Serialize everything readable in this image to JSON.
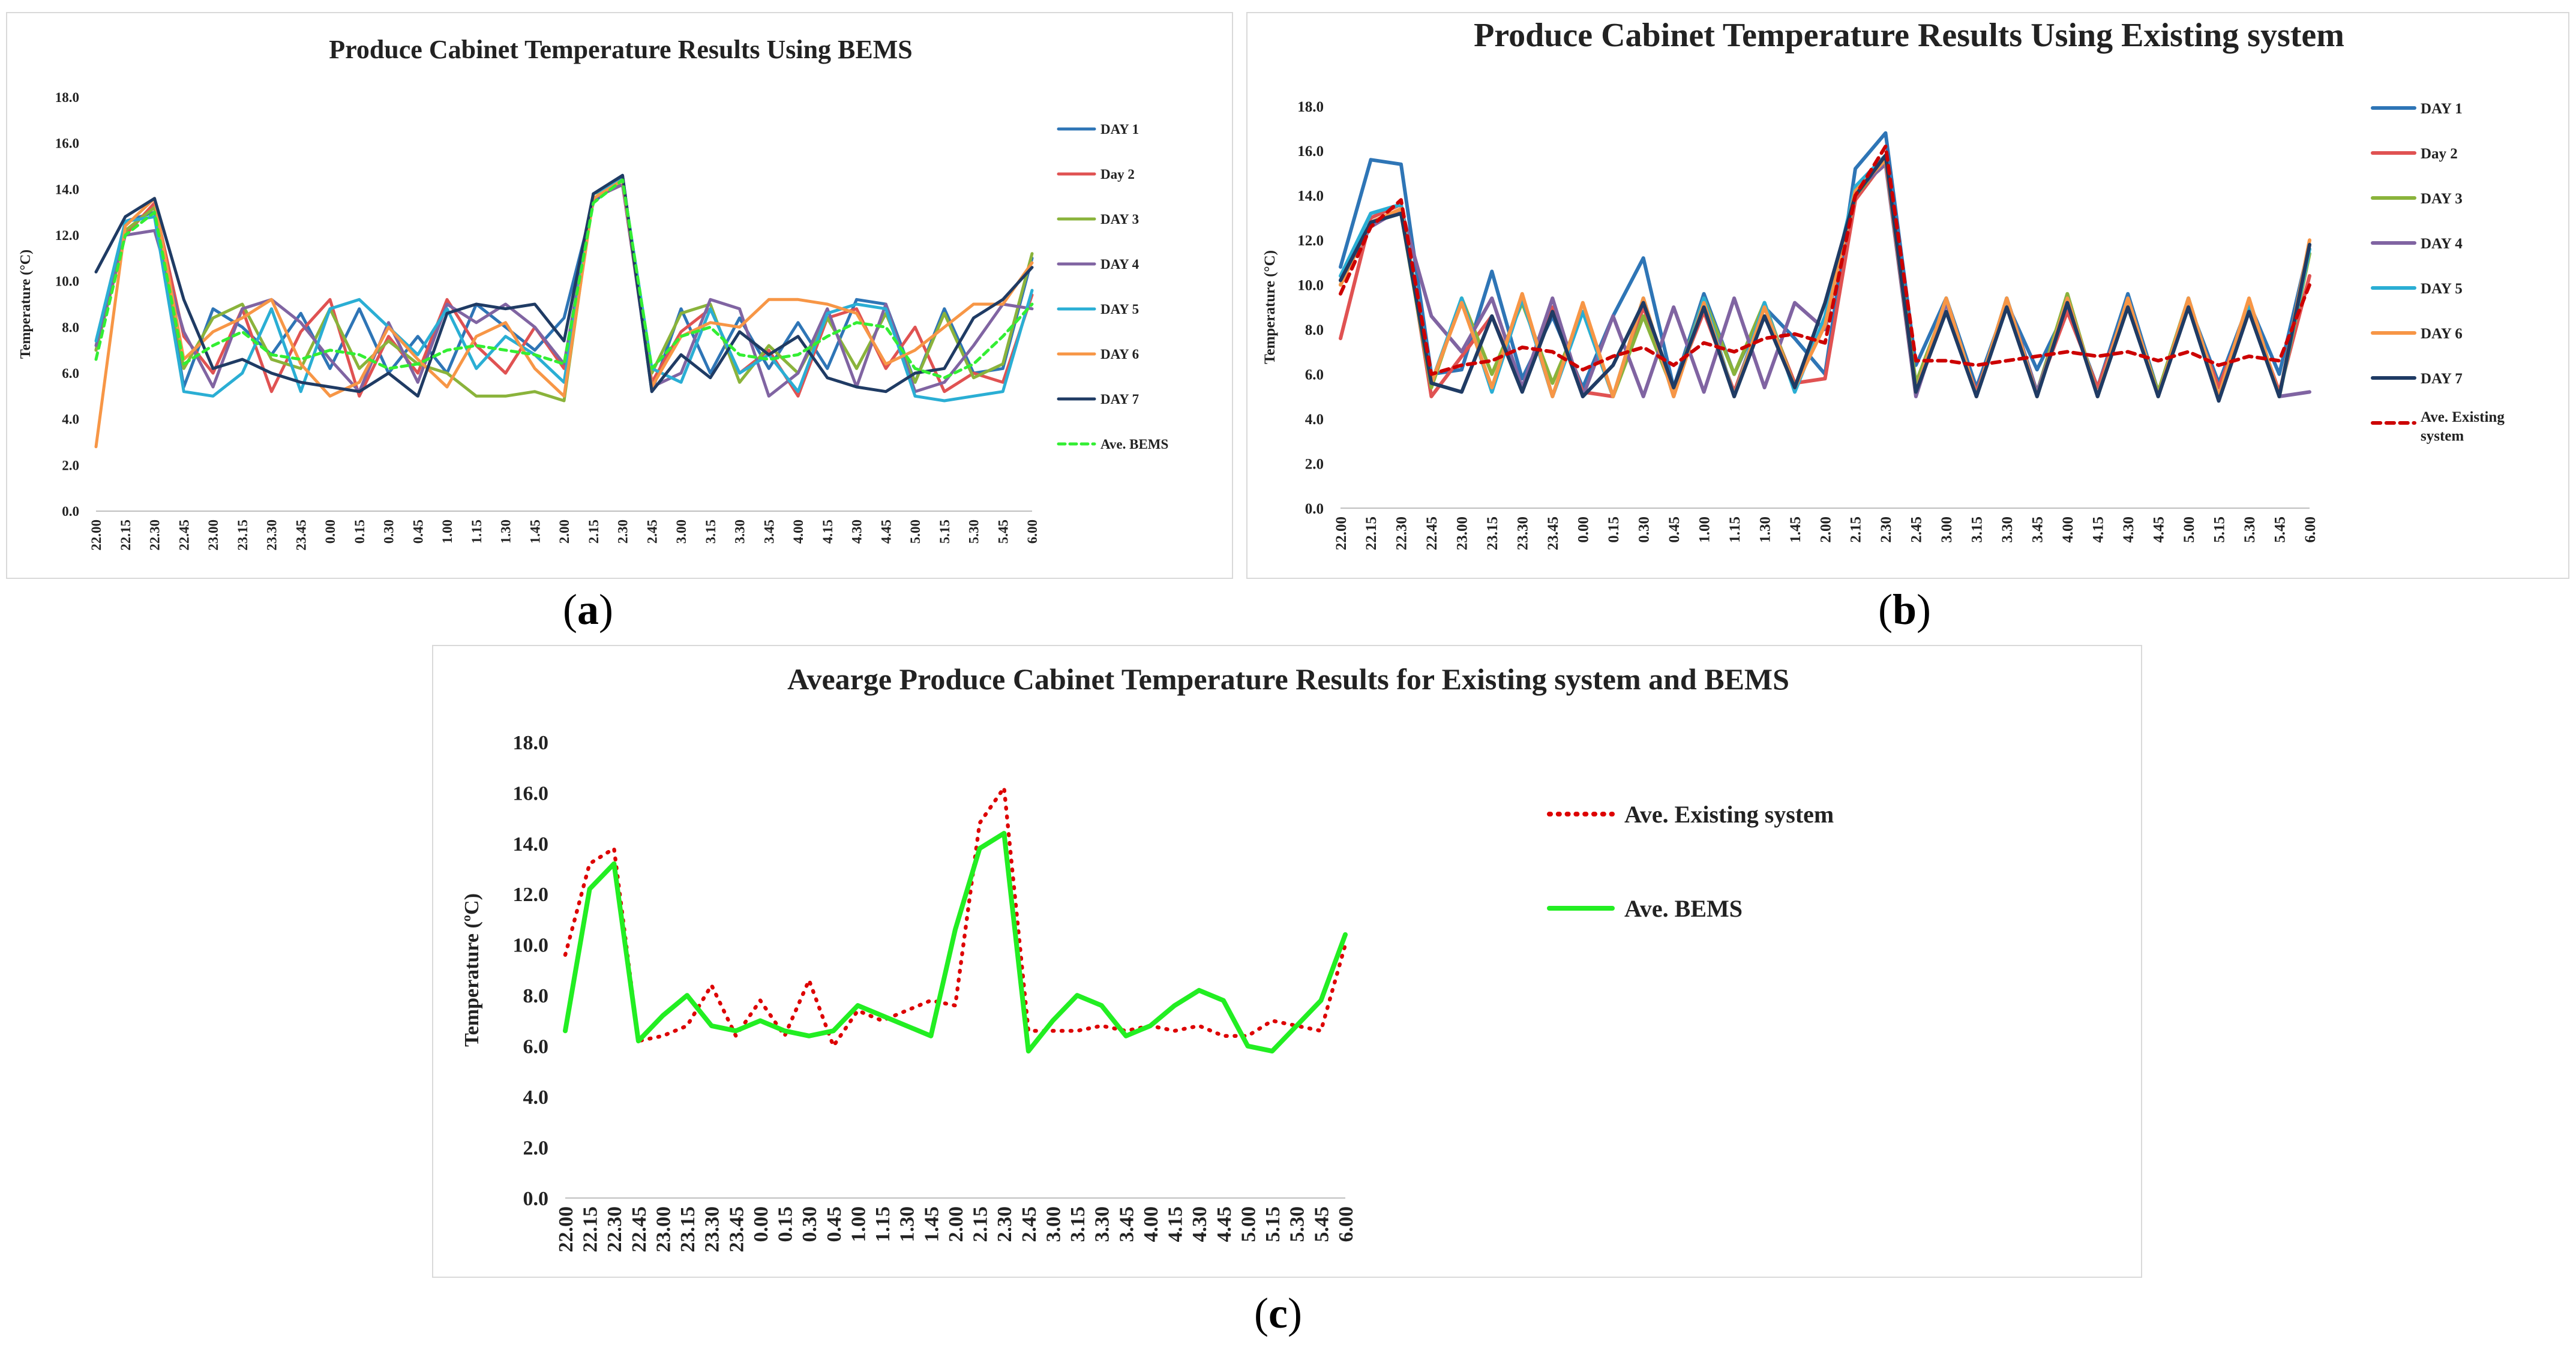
{
  "chart_data": [
    {
      "id": "a",
      "type": "line",
      "title": "Produce Cabinet Temperature Results Using BEMS",
      "xlabel": "",
      "ylabel": "Temperature (°C)",
      "ylim": [
        0,
        18
      ],
      "yticks": [
        "0.0",
        "2.0",
        "4.0",
        "6.0",
        "8.0",
        "10.0",
        "12.0",
        "14.0",
        "16.0",
        "18.0"
      ],
      "categories": [
        "22.00",
        "22.15",
        "22.30",
        "22.45",
        "23.00",
        "23.15",
        "23.30",
        "23.45",
        "0.00",
        "0.15",
        "0.30",
        "0.45",
        "1.00",
        "1.15",
        "1.30",
        "1.45",
        "2.00",
        "2.15",
        "2.30",
        "2.45",
        "3.00",
        "3.15",
        "3.30",
        "3.45",
        "4.00",
        "4.15",
        "4.30",
        "4.45",
        "5.00",
        "5.15",
        "5.30",
        "5.45",
        "6.00"
      ],
      "series": [
        {
          "name": "DAY 1",
          "color": "#2e75b6",
          "dash": "solid",
          "values": [
            7.0,
            12.6,
            13.0,
            5.4,
            8.8,
            8.0,
            6.8,
            8.6,
            6.2,
            8.8,
            6.0,
            7.6,
            6.0,
            9.0,
            8.0,
            7.0,
            8.4,
            13.4,
            14.6,
            5.2,
            8.8,
            6.0,
            8.4,
            6.2,
            8.2,
            6.2,
            9.2,
            9.0,
            5.6,
            8.8,
            6.0,
            6.2,
            11.0
          ]
        },
        {
          "name": "Day 2",
          "color": "#e05252",
          "dash": "solid",
          "values": [
            7.0,
            12.0,
            13.4,
            7.6,
            6.0,
            8.8,
            5.2,
            7.8,
            9.2,
            5.0,
            7.6,
            6.0,
            9.2,
            7.2,
            6.0,
            8.0,
            6.2,
            13.6,
            14.2,
            5.6,
            7.8,
            8.8,
            6.0,
            7.0,
            5.0,
            8.4,
            8.8,
            6.2,
            8.0,
            5.2,
            6.0,
            5.6,
            9.4
          ]
        },
        {
          "name": "DAY 3",
          "color": "#8ab33b",
          "dash": "solid",
          "values": [
            7.0,
            12.2,
            13.2,
            6.2,
            8.4,
            9.0,
            6.6,
            6.2,
            8.8,
            6.2,
            7.4,
            6.4,
            6.0,
            5.0,
            5.0,
            5.2,
            4.8,
            13.8,
            14.2,
            6.0,
            8.6,
            9.0,
            5.6,
            7.2,
            6.0,
            8.4,
            6.2,
            8.6,
            5.6,
            8.6,
            5.8,
            6.4,
            11.2
          ]
        },
        {
          "name": "DAY 4",
          "color": "#8064a2",
          "dash": "solid",
          "values": [
            7.2,
            12.0,
            12.2,
            7.8,
            5.4,
            8.8,
            9.2,
            8.2,
            6.6,
            5.2,
            8.2,
            5.6,
            9.0,
            8.2,
            9.0,
            8.0,
            6.4,
            13.6,
            14.2,
            5.4,
            6.0,
            9.2,
            8.8,
            5.0,
            6.0,
            8.8,
            5.4,
            9.0,
            5.2,
            5.6,
            7.2,
            9.0,
            8.8
          ]
        },
        {
          "name": "DAY 5",
          "color": "#2aaed4",
          "dash": "solid",
          "values": [
            7.4,
            12.6,
            12.8,
            5.2,
            5.0,
            6.0,
            8.8,
            5.2,
            8.8,
            9.2,
            8.0,
            6.8,
            8.8,
            6.2,
            7.6,
            6.8,
            5.6,
            13.8,
            14.4,
            6.2,
            5.6,
            8.8,
            6.0,
            6.8,
            5.2,
            8.6,
            9.0,
            8.8,
            5.0,
            4.8,
            5.0,
            5.2,
            9.6
          ]
        },
        {
          "name": "DAY 6",
          "color": "#f79646",
          "dash": "solid",
          "values": [
            2.8,
            12.4,
            13.6,
            6.6,
            7.8,
            8.4,
            9.2,
            6.4,
            5.0,
            5.6,
            8.0,
            6.6,
            5.4,
            7.6,
            8.2,
            6.2,
            5.0,
            13.6,
            14.4,
            5.4,
            7.6,
            8.2,
            8.0,
            9.2,
            9.2,
            9.0,
            8.6,
            6.4,
            7.0,
            8.0,
            9.0,
            9.0,
            10.8
          ]
        },
        {
          "name": "DAY 7",
          "color": "#1f3b64",
          "dash": "solid",
          "values": [
            10.4,
            12.8,
            13.6,
            9.2,
            6.2,
            6.6,
            6.0,
            5.6,
            5.4,
            5.2,
            6.0,
            5.0,
            8.6,
            9.0,
            8.8,
            9.0,
            7.4,
            13.8,
            14.6,
            5.2,
            6.8,
            5.8,
            7.8,
            6.8,
            7.6,
            5.8,
            5.4,
            5.2,
            6.0,
            6.2,
            8.4,
            9.2,
            10.6
          ]
        },
        {
          "name": "Ave. BEMS",
          "color": "#33ee33",
          "dash": "dashed",
          "values": [
            6.6,
            12.0,
            13.0,
            6.4,
            7.2,
            7.8,
            6.8,
            6.6,
            7.0,
            6.8,
            6.2,
            6.4,
            7.0,
            7.2,
            7.0,
            6.8,
            6.4,
            13.4,
            14.4,
            6.2,
            7.6,
            8.0,
            6.8,
            6.6,
            6.8,
            7.6,
            8.2,
            8.0,
            6.2,
            5.8,
            6.4,
            7.6,
            9.0
          ]
        }
      ],
      "legend_position": "right"
    },
    {
      "id": "b",
      "type": "line",
      "title": "Produce Cabinet Temperature Results Using Existing system",
      "xlabel": "",
      "ylabel": "Temperature (°C)",
      "ylim": [
        0,
        18
      ],
      "yticks": [
        "0.0",
        "2.0",
        "4.0",
        "6.0",
        "8.0",
        "10.0",
        "12.0",
        "14.0",
        "16.0",
        "18.0"
      ],
      "categories": [
        "22.00",
        "22.15",
        "22.30",
        "22.45",
        "23.00",
        "23.15",
        "23.30",
        "23.45",
        "0.00",
        "0.15",
        "0.30",
        "0.45",
        "1.00",
        "1.15",
        "1.30",
        "1.45",
        "2.00",
        "2.15",
        "2.30",
        "2.45",
        "3.00",
        "3.15",
        "3.30",
        "3.45",
        "4.00",
        "4.15",
        "4.30",
        "4.45",
        "5.00",
        "5.15",
        "5.30",
        "5.45",
        "6.00"
      ],
      "series": [
        {
          "name": "DAY 1",
          "color": "#2e75b6",
          "dash": "solid",
          "values": [
            10.8,
            15.6,
            15.4,
            6.0,
            6.2,
            10.6,
            5.8,
            8.6,
            5.4,
            8.6,
            11.2,
            5.4,
            9.6,
            6.0,
            9.0,
            7.6,
            6.0,
            15.2,
            16.8,
            6.4,
            9.4,
            5.4,
            9.2,
            6.2,
            9.0,
            5.4,
            9.6,
            5.2,
            9.2,
            5.6,
            9.2,
            6.0,
            11.8
          ]
        },
        {
          "name": "Day 2",
          "color": "#e05252",
          "dash": "solid",
          "values": [
            7.6,
            13.0,
            13.6,
            5.0,
            6.8,
            8.6,
            5.4,
            9.0,
            5.2,
            5.0,
            9.0,
            5.4,
            8.8,
            5.2,
            9.0,
            5.6,
            5.8,
            13.8,
            15.6,
            5.4,
            8.8,
            5.2,
            9.0,
            5.2,
            8.8,
            5.4,
            9.2,
            5.2,
            9.0,
            5.4,
            9.0,
            5.2,
            10.4
          ]
        },
        {
          "name": "DAY 3",
          "color": "#8ab33b",
          "dash": "solid",
          "values": [
            10.0,
            12.8,
            13.2,
            5.4,
            9.4,
            6.0,
            9.2,
            5.6,
            8.8,
            5.0,
            8.6,
            5.2,
            9.4,
            6.0,
            9.2,
            5.4,
            8.4,
            14.0,
            15.6,
            5.6,
            9.2,
            5.0,
            9.4,
            5.2,
            9.6,
            5.0,
            9.2,
            5.2,
            9.4,
            5.0,
            9.2,
            5.0,
            11.4
          ]
        },
        {
          "name": "DAY 4",
          "color": "#8064a2",
          "dash": "solid",
          "values": [
            10.2,
            12.6,
            13.4,
            8.6,
            7.0,
            9.4,
            5.4,
            9.4,
            5.0,
            8.6,
            5.0,
            9.0,
            5.2,
            9.4,
            5.4,
            9.2,
            8.0,
            14.2,
            15.4,
            5.0,
            9.2,
            5.0,
            9.4,
            5.2,
            9.2,
            5.0,
            9.4,
            5.0,
            9.2,
            5.0,
            9.2,
            5.0,
            5.2
          ]
        },
        {
          "name": "DAY 5",
          "color": "#2aaed4",
          "dash": "solid",
          "values": [
            10.4,
            13.2,
            13.6,
            5.6,
            9.4,
            5.2,
            9.4,
            5.0,
            8.8,
            5.0,
            9.4,
            5.0,
            9.4,
            5.0,
            9.2,
            5.2,
            8.6,
            14.4,
            15.8,
            5.2,
            9.4,
            5.0,
            9.4,
            5.0,
            9.4,
            5.0,
            9.4,
            5.0,
            9.4,
            5.0,
            9.0,
            5.0,
            11.6
          ]
        },
        {
          "name": "DAY 6",
          "color": "#f79646",
          "dash": "solid",
          "values": [
            10.0,
            12.8,
            13.4,
            5.6,
            9.2,
            5.4,
            9.6,
            5.0,
            9.2,
            5.0,
            9.4,
            5.0,
            9.2,
            5.0,
            9.0,
            5.4,
            8.2,
            14.2,
            15.6,
            5.2,
            9.4,
            5.0,
            9.4,
            5.0,
            9.4,
            5.0,
            9.4,
            5.0,
            9.4,
            5.0,
            9.4,
            5.0,
            12.0
          ]
        },
        {
          "name": "DAY 7",
          "color": "#1f3b64",
          "dash": "solid",
          "values": [
            10.2,
            12.8,
            13.2,
            5.6,
            5.2,
            8.6,
            5.2,
            8.8,
            5.0,
            6.4,
            9.2,
            5.4,
            9.0,
            5.0,
            8.6,
            5.4,
            9.2,
            14.0,
            15.8,
            5.2,
            8.8,
            5.0,
            9.0,
            5.0,
            9.2,
            5.0,
            9.0,
            5.0,
            9.0,
            4.8,
            8.8,
            5.0,
            11.8
          ]
        },
        {
          "name": "Ave. Existing system",
          "color": "#cc0000",
          "dash": "dashed",
          "values": [
            9.6,
            12.6,
            13.8,
            6.0,
            6.4,
            6.6,
            7.2,
            7.0,
            6.2,
            6.8,
            7.2,
            6.4,
            7.4,
            7.0,
            7.6,
            7.8,
            7.4,
            14.0,
            16.2,
            6.6,
            6.6,
            6.4,
            6.6,
            6.8,
            7.0,
            6.8,
            7.0,
            6.6,
            7.0,
            6.4,
            6.8,
            6.6,
            10.0
          ]
        }
      ],
      "legend_position": "right"
    },
    {
      "id": "c",
      "type": "line",
      "title": "Avearge Produce Cabinet Temperature Results for Existing system and BEMS",
      "xlabel": "",
      "ylabel": "Temperature (ºC)",
      "ylim": [
        0,
        18
      ],
      "yticks": [
        "0.0",
        "2.0",
        "4.0",
        "6.0",
        "8.0",
        "10.0",
        "12.0",
        "14.0",
        "16.0",
        "18.0"
      ],
      "categories": [
        "22.00",
        "22.15",
        "22.30",
        "22.45",
        "23.00",
        "23.15",
        "23.30",
        "23.45",
        "0.00",
        "0.15",
        "0.30",
        "0.45",
        "1.00",
        "1.15",
        "1.30",
        "1.45",
        "2.00",
        "2.15",
        "2.30",
        "2.45",
        "3.00",
        "3.15",
        "3.30",
        "3.45",
        "4.00",
        "4.15",
        "4.30",
        "4.45",
        "5.00",
        "5.15",
        "5.30",
        "5.45",
        "6.00"
      ],
      "series": [
        {
          "name": "Ave. Existing system",
          "color": "#dd0000",
          "dash": "dotted",
          "values": [
            9.6,
            13.2,
            13.8,
            6.2,
            6.4,
            6.8,
            8.4,
            6.4,
            7.8,
            6.4,
            8.6,
            6.0,
            7.4,
            7.0,
            7.4,
            7.8,
            7.6,
            14.8,
            16.2,
            6.6,
            6.6,
            6.6,
            6.8,
            6.6,
            6.8,
            6.6,
            6.8,
            6.4,
            6.4,
            7.0,
            6.8,
            6.6,
            10.0
          ]
        },
        {
          "name": "Ave. BEMS",
          "color": "#22ee22",
          "dash": "solid",
          "values": [
            6.6,
            12.2,
            13.2,
            6.2,
            7.2,
            8.0,
            6.8,
            6.6,
            7.0,
            6.6,
            6.4,
            6.6,
            7.6,
            7.2,
            6.8,
            6.4,
            10.6,
            13.8,
            14.4,
            5.8,
            7.0,
            8.0,
            7.6,
            6.4,
            6.8,
            7.6,
            8.2,
            7.8,
            6.0,
            5.8,
            6.8,
            7.8,
            10.4
          ]
        }
      ],
      "legend_position": "right"
    }
  ],
  "captions": [
    "(a)",
    "(b)",
    "(c)"
  ]
}
